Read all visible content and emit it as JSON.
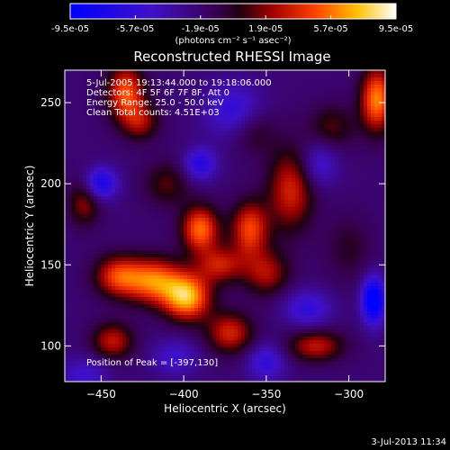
{
  "chart_data": {
    "type": "heatmap",
    "title": "Reconstructed RHESSI Image",
    "xlabel": "Heliocentric X (arcsec)",
    "ylabel": "Heliocentric Y (arcsec)",
    "xlim": [
      -472,
      -278
    ],
    "ylim": [
      78,
      270
    ],
    "xticks": [
      -450,
      -400,
      -350,
      -300
    ],
    "yticks": [
      100,
      150,
      200,
      250
    ],
    "colorbar": {
      "ticks": [
        -9.5e-05,
        -5.7e-05,
        -1.9e-05,
        1.9e-05,
        5.7e-05,
        9.5e-05
      ],
      "tick_labels": [
        "-9.5e-05",
        "-5.7e-05",
        "-1.9e-05",
        "1.9e-05",
        "5.7e-05",
        "9.5e-05"
      ],
      "unit_label": "(photons cm⁻² s⁻¹ asec⁻²)",
      "range": [
        -9.5e-05,
        9.5e-05
      ]
    },
    "annotations": [
      "5-Jul-2005 19:13:44.000 to 19:18:06.000",
      "Detectors: 4F 5F 6F 7F 8F, Att 0",
      "Energy Range: 25.0 - 50.0 keV",
      "Clean     Total counts: 4.51E+03",
      "Position of Peak = [-397,130]"
    ],
    "peak": [
      -397,
      130
    ],
    "sources": [
      {
        "x": -398,
        "y": 130,
        "value": 9e-05,
        "sx": 10,
        "sy": 10
      },
      {
        "x": -418,
        "y": 140,
        "value": 7.5e-05,
        "sx": 12,
        "sy": 10
      },
      {
        "x": -440,
        "y": 143,
        "value": 6e-05,
        "sx": 10,
        "sy": 9
      },
      {
        "x": -390,
        "y": 172,
        "value": 7.5e-05,
        "sx": 8,
        "sy": 10
      },
      {
        "x": -378,
        "y": 150,
        "value": 5e-05,
        "sx": 10,
        "sy": 8
      },
      {
        "x": -335,
        "y": 196,
        "value": 5.5e-05,
        "sx": 10,
        "sy": 18
      },
      {
        "x": -360,
        "y": 172,
        "value": 6.5e-05,
        "sx": 8,
        "sy": 12
      },
      {
        "x": -350,
        "y": 145,
        "value": 4.5e-05,
        "sx": 10,
        "sy": 10
      },
      {
        "x": -435,
        "y": 256,
        "value": 7e-05,
        "sx": 8,
        "sy": 12
      },
      {
        "x": -426,
        "y": 238,
        "value": 4e-05,
        "sx": 8,
        "sy": 8
      },
      {
        "x": -283,
        "y": 252,
        "value": 8e-05,
        "sx": 7,
        "sy": 14
      },
      {
        "x": -443,
        "y": 103,
        "value": 5e-05,
        "sx": 9,
        "sy": 8
      },
      {
        "x": -372,
        "y": 108,
        "value": 5.5e-05,
        "sx": 10,
        "sy": 9
      },
      {
        "x": -320,
        "y": 100,
        "value": 5e-05,
        "sx": 12,
        "sy": 7
      },
      {
        "x": -460,
        "y": 188,
        "value": 4e-05,
        "sx": 7,
        "sy": 10
      },
      {
        "x": -410,
        "y": 200,
        "value": 3e-05,
        "sx": 10,
        "sy": 10
      },
      {
        "x": -310,
        "y": 235,
        "value": 3e-05,
        "sx": 10,
        "sy": 10
      },
      {
        "x": -358,
        "y": 232,
        "value": 2.5e-05,
        "sx": 10,
        "sy": 10
      },
      {
        "x": -300,
        "y": 160,
        "value": 2e-05,
        "sx": 10,
        "sy": 14
      },
      {
        "x": -390,
        "y": 212,
        "value": -5e-05,
        "sx": 7,
        "sy": 7
      },
      {
        "x": -450,
        "y": 200,
        "value": -6e-05,
        "sx": 7,
        "sy": 7
      },
      {
        "x": -370,
        "y": 245,
        "value": -4e-05,
        "sx": 12,
        "sy": 12
      },
      {
        "x": -285,
        "y": 128,
        "value": -9e-05,
        "sx": 5,
        "sy": 10
      },
      {
        "x": -325,
        "y": 123,
        "value": -4e-05,
        "sx": 10,
        "sy": 8
      },
      {
        "x": -405,
        "y": 93,
        "value": -3e-05,
        "sx": 10,
        "sy": 8
      },
      {
        "x": -460,
        "y": 82,
        "value": -3e-05,
        "sx": 10,
        "sy": 8
      },
      {
        "x": -318,
        "y": 212,
        "value": -3.5e-05,
        "sx": 8,
        "sy": 10
      },
      {
        "x": -350,
        "y": 90,
        "value": -4e-05,
        "sx": 8,
        "sy": 8
      }
    ]
  },
  "footer": {
    "timestamp": "3-Jul-2013 11:34"
  }
}
